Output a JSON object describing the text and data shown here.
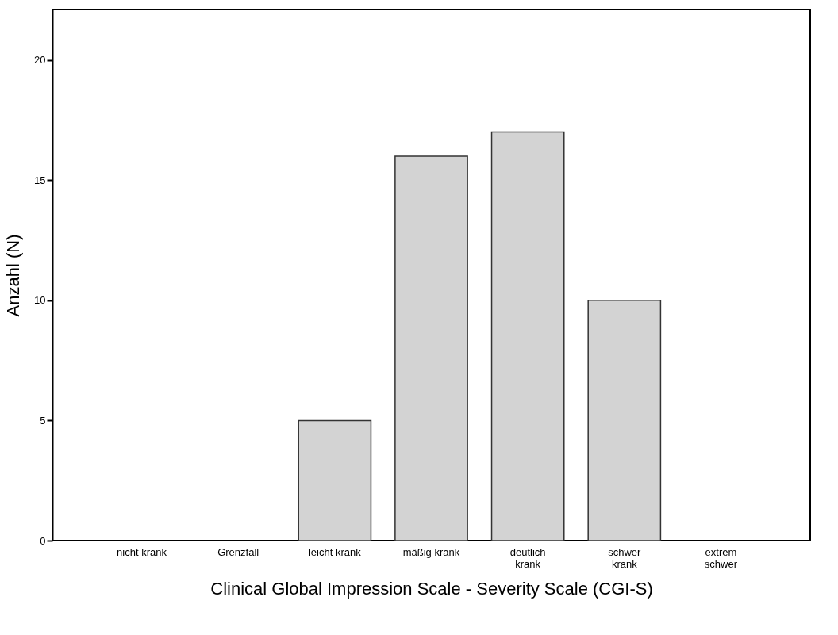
{
  "chart_data": {
    "type": "bar",
    "xlabel": "Clinical Global Impression Scale - Severity Scale (CGI-S)",
    "ylabel": "Anzahl (N)",
    "categories": [
      "nicht krank",
      "Grenzfall",
      "leicht krank",
      "mäßig krank",
      "deutlich\nkrank",
      "schwer\nkrank",
      "extrem\nschwer"
    ],
    "values": [
      0,
      0,
      5,
      16,
      17,
      10,
      0
    ],
    "color": "#d3d3d3",
    "ylim": [
      0,
      22.1
    ],
    "yticks": [
      0,
      5,
      10,
      15,
      20
    ],
    "grid": false
  }
}
